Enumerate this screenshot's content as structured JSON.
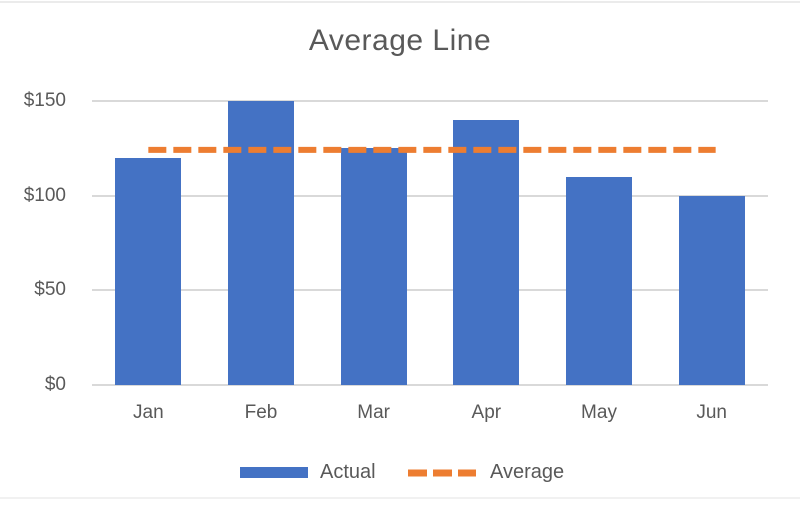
{
  "chart": {
    "title": "Average Line",
    "legend": [
      {
        "label": "Actual",
        "type": "bar",
        "color": "#4472C4"
      },
      {
        "label": "Average",
        "type": "dashed-line",
        "color": "#ED7D31"
      }
    ]
  },
  "chart_data": {
    "type": "bar",
    "title": "Average Line",
    "categories": [
      "Jan",
      "Feb",
      "Mar",
      "Apr",
      "May",
      "Jun"
    ],
    "series": [
      {
        "name": "Actual",
        "type": "bar",
        "color": "#4472C4",
        "values": [
          120,
          150,
          125,
          140,
          110,
          100
        ]
      },
      {
        "name": "Average",
        "type": "line",
        "style": "dashed",
        "color": "#ED7D31",
        "values": [
          124.17,
          124.17,
          124.17,
          124.17,
          124.17,
          124.17
        ]
      }
    ],
    "average_value": 124.17,
    "ylim": [
      0,
      150
    ],
    "ytick_values": [
      150,
      100,
      50,
      0
    ],
    "ytick_labels": [
      "$150",
      "$100",
      "$50",
      "$0"
    ],
    "grid": true,
    "legend_position": "bottom",
    "text_color": "#595959",
    "gridline_color": "#D9D9D9",
    "background_color": "#FFFFFF"
  }
}
